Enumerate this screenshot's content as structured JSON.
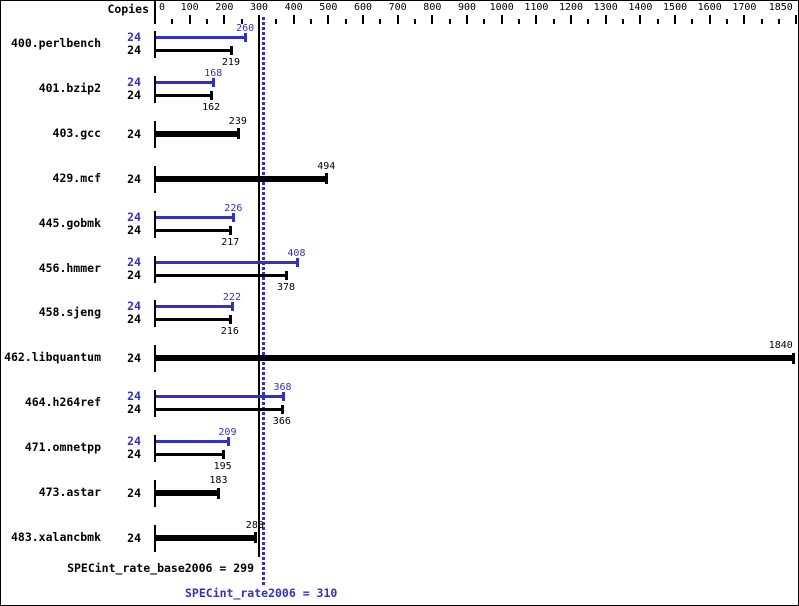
{
  "chart_data": {
    "type": "bar",
    "orientation": "horizontal",
    "header": {
      "copies_label": "Copies"
    },
    "axis": {
      "min": 0,
      "max": 1850,
      "position": "top",
      "tick_labels": [
        0,
        100,
        200,
        300,
        400,
        500,
        600,
        700,
        800,
        900,
        1000,
        1100,
        1200,
        1300,
        1400,
        1500,
        1600,
        1700,
        1850
      ],
      "minor_tick_step": 50,
      "grid": false
    },
    "benchmarks": [
      {
        "name": "400.perlbench",
        "copies": 24,
        "peak": 260,
        "base": 219
      },
      {
        "name": "401.bzip2",
        "copies": 24,
        "peak": 168,
        "base": 162
      },
      {
        "name": "403.gcc",
        "copies": 24,
        "peak": null,
        "base": 239
      },
      {
        "name": "429.mcf",
        "copies": 24,
        "peak": null,
        "base": 494
      },
      {
        "name": "445.gobmk",
        "copies": 24,
        "peak": 226,
        "base": 217
      },
      {
        "name": "456.hmmer",
        "copies": 24,
        "peak": 408,
        "base": 378
      },
      {
        "name": "458.sjeng",
        "copies": 24,
        "peak": 222,
        "base": 216
      },
      {
        "name": "462.libquantum",
        "copies": 24,
        "peak": null,
        "base": 1840
      },
      {
        "name": "464.h264ref",
        "copies": 24,
        "peak": 368,
        "base": 366
      },
      {
        "name": "471.omnetpp",
        "copies": 24,
        "peak": 209,
        "base": 195
      },
      {
        "name": "473.astar",
        "copies": 24,
        "peak": null,
        "base": 183
      },
      {
        "name": "483.xalancbmk",
        "copies": 24,
        "peak": null,
        "base": 288
      }
    ],
    "reference_lines": [
      {
        "label": "SPECint_rate_base2006 = 299",
        "value": 299,
        "style": "solid",
        "color": "#000000"
      },
      {
        "label": "SPECint_rate2006 = 310",
        "value": 310,
        "style": "dotted",
        "color": "#3232c0"
      }
    ],
    "colors": {
      "base_bar": "#000000",
      "peak_bar": "#3232c0",
      "background": "#ffffff",
      "border": "#000000"
    }
  }
}
